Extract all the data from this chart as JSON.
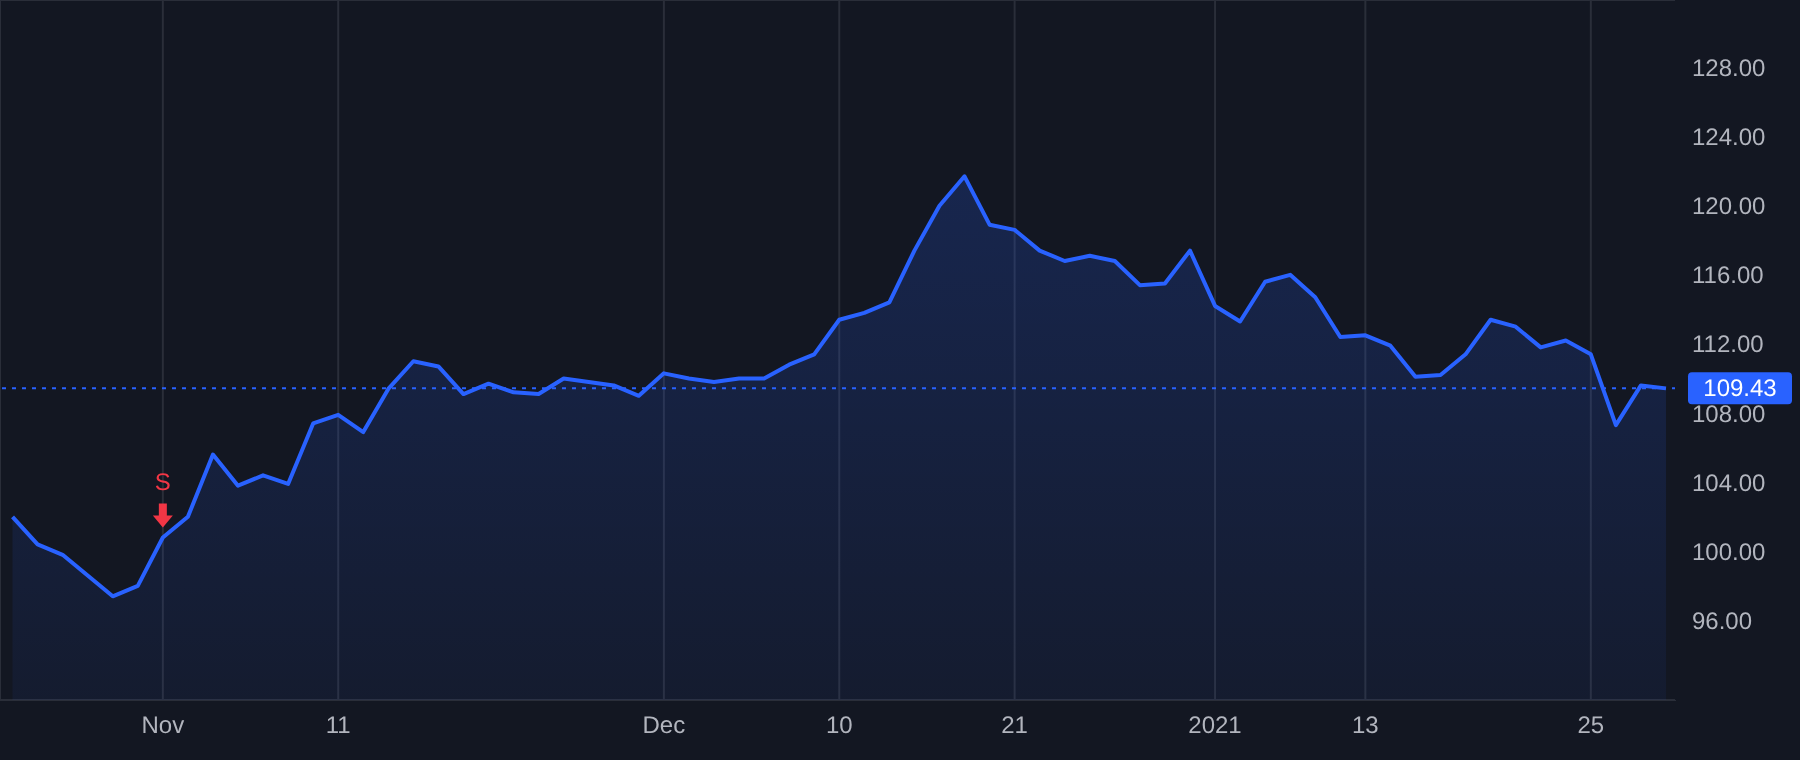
{
  "chart_data": {
    "type": "area",
    "categories": [
      null,
      null,
      null,
      null,
      null,
      null,
      "Nov",
      null,
      null,
      null,
      null,
      null,
      null,
      "11",
      null,
      null,
      null,
      null,
      null,
      null,
      null,
      null,
      null,
      null,
      null,
      null,
      "Dec",
      null,
      null,
      null,
      null,
      null,
      null,
      "10",
      null,
      null,
      null,
      null,
      null,
      null,
      "21",
      null,
      null,
      null,
      null,
      null,
      null,
      null,
      "2021",
      null,
      null,
      null,
      null,
      null,
      "13",
      null,
      null,
      null,
      null,
      null,
      null,
      null,
      null,
      "25",
      null,
      null,
      null
    ],
    "series": [
      {
        "color": "#2962ff",
        "values": [
          102.0,
          100.4,
          99.8,
          98.6,
          97.4,
          98.0,
          100.8,
          102.0,
          105.6,
          103.8,
          104.4,
          103.9,
          107.4,
          107.9,
          106.9,
          109.4,
          111.0,
          110.7,
          109.1,
          109.7,
          109.2,
          109.1,
          110.0,
          109.8,
          109.6,
          109.0,
          110.3,
          110.0,
          109.8,
          110.0,
          110.0,
          110.8,
          111.4,
          113.4,
          113.8,
          114.4,
          117.4,
          120.0,
          121.7,
          118.9,
          118.6,
          117.4,
          116.8,
          117.1,
          116.8,
          115.4,
          115.5,
          117.4,
          114.2,
          113.3,
          115.6,
          116.0,
          114.7,
          112.4,
          112.5,
          111.9,
          110.1,
          110.2,
          111.4,
          113.4,
          113.0,
          111.8,
          112.2,
          111.4,
          107.3,
          109.6,
          109.43
        ]
      }
    ],
    "ylim": [
      91.4,
      131.9
    ],
    "yticks": [
      {
        "value": 96,
        "label": "96.00"
      },
      {
        "value": 100,
        "label": "100.00"
      },
      {
        "value": 104,
        "label": "104.00"
      },
      {
        "value": 108,
        "label": "108.00"
      },
      {
        "value": 112,
        "label": "112.00"
      },
      {
        "value": 116,
        "label": "116.00"
      },
      {
        "value": 120,
        "label": "120.00"
      },
      {
        "value": 124,
        "label": "124.00"
      },
      {
        "value": 128,
        "label": "128.00"
      }
    ],
    "grid": true,
    "legend": false,
    "ref_lines": [
      {
        "axis": "y",
        "value": 109.43,
        "label": "109.43",
        "color": "#2962ff",
        "line_style": "dotted"
      }
    ],
    "annotations": [
      {
        "text": "S",
        "x": "Nov",
        "y": 100.8
      }
    ]
  }
}
